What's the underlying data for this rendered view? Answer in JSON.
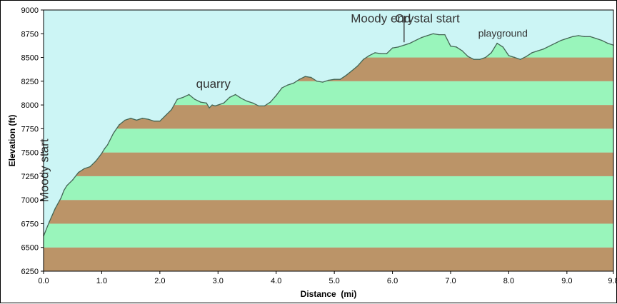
{
  "chart_data": {
    "type": "area",
    "xlabel": "Distance  (mi)",
    "ylabel": "Elevation (ft)",
    "xlim": [
      0,
      9.8
    ],
    "ylim": [
      6250,
      9000
    ],
    "x_ticks": [
      "0.0",
      "1.0",
      "2.0",
      "3.0",
      "4.0",
      "5.0",
      "6.0",
      "7.0",
      "8.0",
      "9.0",
      "9.8"
    ],
    "y_ticks": [
      "6250",
      "6500",
      "6750",
      "7000",
      "7250",
      "7500",
      "7750",
      "8000",
      "8250",
      "8500",
      "8750",
      "9000"
    ],
    "grid": false,
    "colors": {
      "sky": "#ccf5f5",
      "band_green": "#99f5bb",
      "band_brown": "#bb9468",
      "profile_line": "#446655",
      "annotation_text": "#333333"
    },
    "series": [
      {
        "x": [
          0,
          0.1,
          0.2,
          0.3,
          0.35,
          0.4,
          0.5,
          0.6,
          0.7,
          0.8,
          0.9,
          1.0,
          1.05,
          1.1,
          1.2,
          1.3,
          1.4,
          1.5,
          1.6,
          1.7,
          1.8,
          1.9,
          2.0,
          2.1,
          2.2,
          2.3,
          2.4,
          2.5,
          2.6,
          2.7,
          2.8,
          2.85,
          2.9,
          2.95,
          3.0,
          3.1,
          3.2,
          3.3,
          3.4,
          3.5,
          3.6,
          3.7,
          3.8,
          3.9,
          4.0,
          4.1,
          4.2,
          4.3,
          4.4,
          4.5,
          4.6,
          4.7,
          4.8,
          4.9,
          5.0,
          5.1,
          5.2,
          5.3,
          5.4,
          5.5,
          5.6,
          5.7,
          5.8,
          5.9,
          6.0,
          6.1,
          6.2,
          6.3,
          6.4,
          6.5,
          6.6,
          6.7,
          6.8,
          6.9,
          7.0,
          7.1,
          7.2,
          7.3,
          7.4,
          7.5,
          7.6,
          7.7,
          7.8,
          7.9,
          8.0,
          8.1,
          8.2,
          8.3,
          8.4,
          8.5,
          8.6,
          8.7,
          8.8,
          8.9,
          9.0,
          9.1,
          9.2,
          9.3,
          9.4,
          9.5,
          9.6,
          9.7,
          9.8
        ],
        "y": [
          6620,
          6770,
          6910,
          7020,
          7100,
          7150,
          7210,
          7290,
          7330,
          7350,
          7410,
          7490,
          7540,
          7580,
          7700,
          7790,
          7840,
          7860,
          7840,
          7860,
          7850,
          7830,
          7830,
          7890,
          7950,
          8060,
          8080,
          8110,
          8060,
          8030,
          8020,
          7970,
          8000,
          7990,
          8000,
          8020,
          8080,
          8110,
          8070,
          8040,
          8020,
          7990,
          7990,
          8030,
          8100,
          8180,
          8210,
          8230,
          8270,
          8300,
          8290,
          8250,
          8240,
          8260,
          8270,
          8270,
          8310,
          8360,
          8410,
          8480,
          8520,
          8550,
          8540,
          8540,
          8600,
          8610,
          8630,
          8650,
          8680,
          8710,
          8730,
          8750,
          8740,
          8740,
          8620,
          8610,
          8570,
          8510,
          8480,
          8480,
          8500,
          8550,
          8650,
          8610,
          8520,
          8500,
          8480,
          8510,
          8550,
          8570,
          8590,
          8620,
          8650,
          8680,
          8700,
          8720,
          8730,
          8720,
          8720,
          8700,
          8680,
          8650,
          8630
        ]
      }
    ],
    "annotations": [
      {
        "text": "Moody start",
        "x": 0.08,
        "y": 7310,
        "rotate": -90
      },
      {
        "text": "quarry",
        "x": 2.92,
        "y": 8180
      },
      {
        "text": "Moody end",
        "x": 5.8,
        "y": 8870
      },
      {
        "text": "Crystal start",
        "x": 6.6,
        "y": 8870
      },
      {
        "text": "playground",
        "x": 7.9,
        "y": 8720
      }
    ],
    "divider": {
      "x": 6.2,
      "y_from": 8660,
      "y_to": 8940
    }
  }
}
